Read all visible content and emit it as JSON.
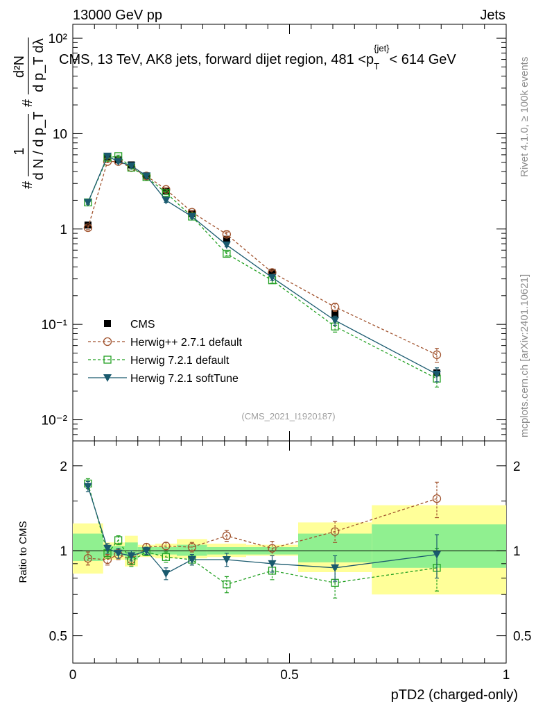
{
  "header": {
    "energy_label": "13000 GeV pp",
    "category_label": "Jets"
  },
  "side_labels": {
    "rivet": "Rivet 4.1.0, ≥ 100k events",
    "mcplots": "mcplots.cern.ch [arXiv:2401.10621]"
  },
  "colors": {
    "cms": "#000000",
    "herwigpp": "#a0522d",
    "herwig721": "#22a022",
    "softtune": "#1a5a6e",
    "band_inner": "#90f090",
    "band_outer": "#ffff99"
  },
  "chart_data": [
    {
      "id": "main",
      "type": "line",
      "title": "CMS, 13 TeV, AK8 jets, forward dijet region, 481 <p_T^{jet}< 614 GeV",
      "ylabel_fraction_num": "1",
      "ylabel_fraction_den": "d N / d p_T",
      "ylabel_deriv_num": "d²N",
      "ylabel_deriv_den": "d p_T dλ",
      "hash_symbol": "#",
      "yscale": "log",
      "ylim": [
        0.006,
        140
      ],
      "xlim": [
        0,
        1
      ],
      "yticks": [
        {
          "value": 0.01,
          "label": "10⁻²"
        },
        {
          "value": 0.1,
          "label": "10⁻¹"
        },
        {
          "value": 1,
          "label": "1"
        },
        {
          "value": 10,
          "label": "10"
        },
        {
          "value": 100,
          "label": "10²"
        }
      ],
      "watermark": "(CMS_2021_I1920187)",
      "x": [
        0.035,
        0.08,
        0.105,
        0.135,
        0.17,
        0.215,
        0.275,
        0.355,
        0.46,
        0.605,
        0.84
      ],
      "series": [
        {
          "name": "CMS",
          "marker": "filled-square",
          "values": [
            1.1,
            5.7,
            5.3,
            4.7,
            3.6,
            2.5,
            1.45,
            0.78,
            0.35,
            0.13,
            0.031
          ]
        },
        {
          "name": "Herwig++ 2.7.1 default",
          "marker": "open-circle",
          "linestyle": "dashed",
          "values": [
            1.03,
            5.1,
            5.1,
            4.4,
            3.6,
            2.6,
            1.5,
            0.88,
            0.35,
            0.152,
            0.048
          ],
          "errors": [
            0.05,
            0.15,
            0.15,
            0.15,
            0.1,
            0.1,
            0.05,
            0.05,
            0.02,
            0.015,
            0.008
          ]
        },
        {
          "name": "Herwig 7.2.1 default",
          "marker": "open-square",
          "linestyle": "dashed",
          "values": [
            1.9,
            5.6,
            5.8,
            4.4,
            3.5,
            2.4,
            1.35,
            0.55,
            0.29,
            0.095,
            0.027
          ],
          "errors": [
            0.08,
            0.15,
            0.15,
            0.15,
            0.1,
            0.1,
            0.05,
            0.03,
            0.02,
            0.012,
            0.005
          ]
        },
        {
          "name": "Herwig 7.2.1 softTune",
          "marker": "filled-triangle-down",
          "linestyle": "solid",
          "values": [
            1.9,
            5.8,
            5.1,
            4.6,
            3.6,
            2.0,
            1.35,
            0.68,
            0.31,
            0.11,
            0.03
          ],
          "errors": [
            0.08,
            0.15,
            0.15,
            0.15,
            0.1,
            0.1,
            0.05,
            0.03,
            0.02,
            0.012,
            0.005
          ]
        }
      ]
    },
    {
      "id": "ratio",
      "type": "line",
      "ylabel": "Ratio to CMS",
      "xlabel": "pTD2 (charged-only)",
      "yscale": "log",
      "ylim": [
        0.4,
        2.45
      ],
      "xlim": [
        0,
        1
      ],
      "yticks": [
        {
          "value": 0.5,
          "label": "0.5"
        },
        {
          "value": 1,
          "label": "1"
        },
        {
          "value": 2,
          "label": "2"
        }
      ],
      "xticks": [
        {
          "value": 0,
          "label": "0"
        },
        {
          "value": 0.5,
          "label": "0.5"
        },
        {
          "value": 1,
          "label": "1"
        }
      ],
      "bins": [
        0,
        0.07,
        0.09,
        0.12,
        0.15,
        0.19,
        0.24,
        0.31,
        0.4,
        0.52,
        0.69,
        1.0
      ],
      "band_outer": [
        [
          0.83,
          1.25
        ],
        [
          0.93,
          1.07
        ],
        [
          0.93,
          1.07
        ],
        [
          0.88,
          1.13
        ],
        [
          0.95,
          1.05
        ],
        [
          0.94,
          1.06
        ],
        [
          0.94,
          1.1
        ],
        [
          0.95,
          1.06
        ],
        [
          0.96,
          1.05
        ],
        [
          0.84,
          1.26
        ],
        [
          0.7,
          1.45
        ]
      ],
      "band_inner": [
        [
          0.92,
          1.15
        ],
        [
          0.96,
          1.04
        ],
        [
          0.96,
          1.04
        ],
        [
          0.93,
          1.07
        ],
        [
          0.97,
          1.03
        ],
        [
          0.97,
          1.03
        ],
        [
          0.96,
          1.05
        ],
        [
          0.97,
          1.03
        ],
        [
          0.97,
          1.03
        ],
        [
          0.91,
          1.15
        ],
        [
          0.87,
          1.24
        ]
      ],
      "reference_line": 1,
      "x": [
        0.035,
        0.08,
        0.105,
        0.135,
        0.17,
        0.215,
        0.275,
        0.355,
        0.46,
        0.605,
        0.84
      ],
      "series": [
        {
          "name": "Herwig++ 2.7.1 default",
          "marker": "open-circle",
          "linestyle": "dashed",
          "values": [
            0.94,
            0.93,
            0.97,
            0.93,
            1.03,
            1.04,
            1.03,
            1.13,
            1.02,
            1.17,
            1.53
          ],
          "errors": [
            0.05,
            0.04,
            0.04,
            0.04,
            0.03,
            0.03,
            0.04,
            0.05,
            0.06,
            0.1,
            0.22
          ]
        },
        {
          "name": "Herwig 7.2.1 default",
          "marker": "open-square",
          "linestyle": "dashed",
          "values": [
            1.73,
            0.98,
            1.09,
            0.92,
            0.99,
            0.95,
            0.93,
            0.76,
            0.85,
            0.77,
            0.87
          ],
          "errors": [
            0.07,
            0.04,
            0.04,
            0.04,
            0.03,
            0.04,
            0.04,
            0.05,
            0.06,
            0.09,
            0.15
          ]
        },
        {
          "name": "Herwig 7.2.1 softTune",
          "marker": "filled-triangle-down",
          "linestyle": "solid",
          "values": [
            1.69,
            1.02,
            0.98,
            0.96,
            1.0,
            0.83,
            0.93,
            0.93,
            0.9,
            0.87,
            0.97
          ],
          "errors": [
            0.07,
            0.04,
            0.04,
            0.04,
            0.03,
            0.04,
            0.04,
            0.05,
            0.06,
            0.09,
            0.17
          ]
        }
      ]
    }
  ]
}
